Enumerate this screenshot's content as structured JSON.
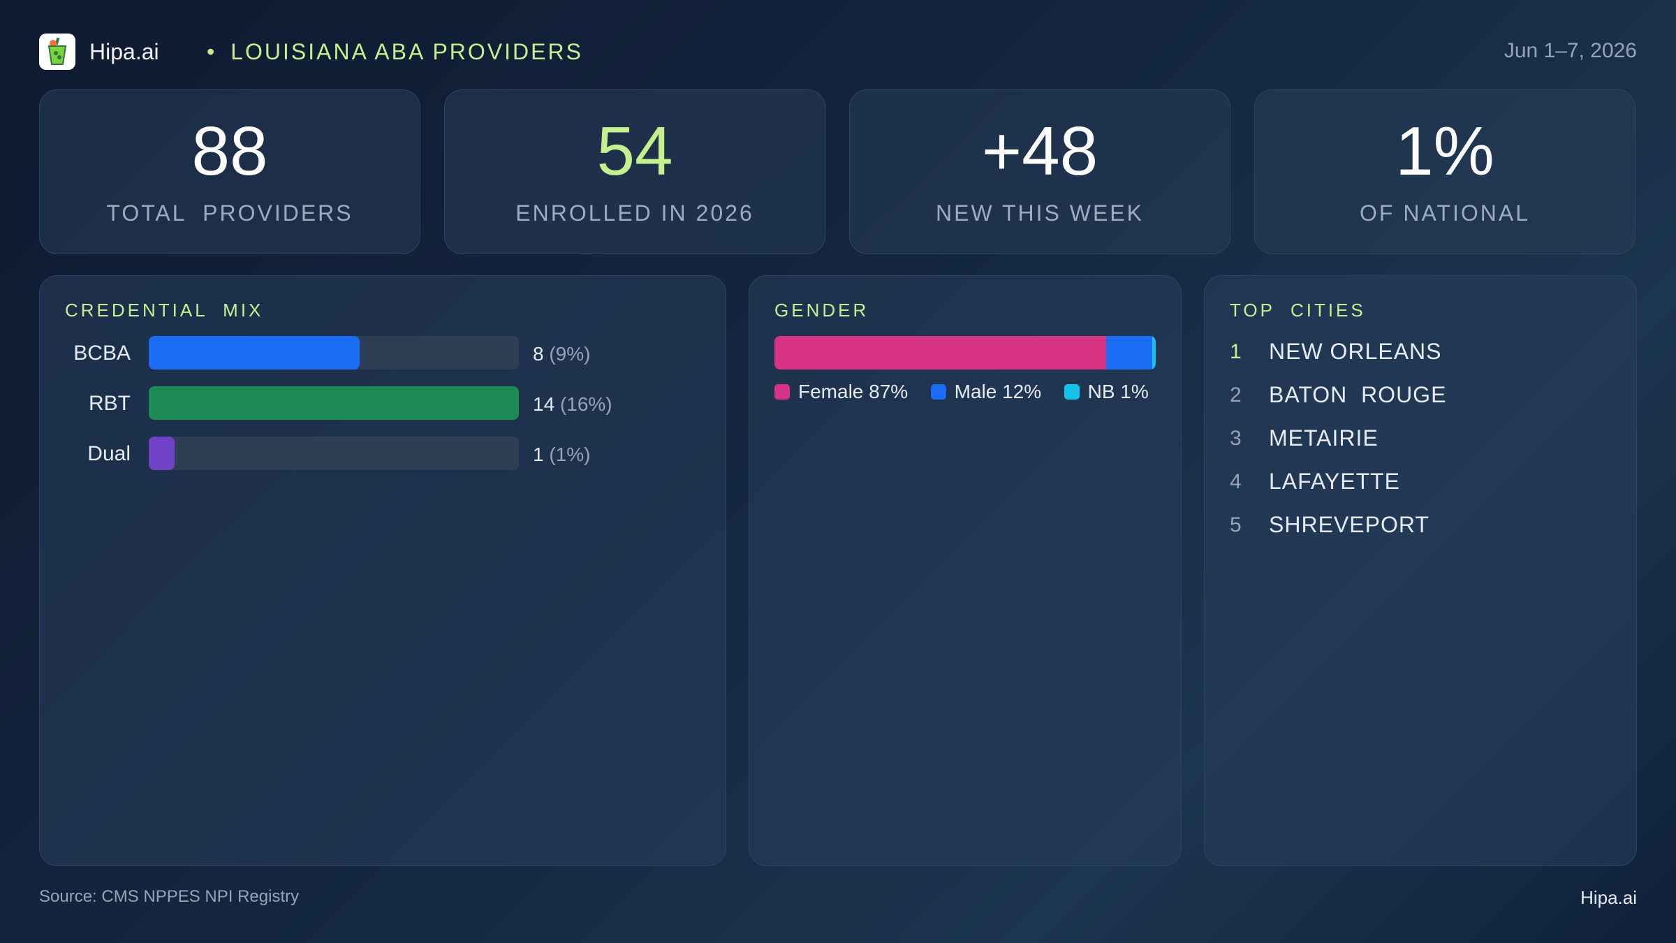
{
  "header": {
    "brand": "Hipa.ai",
    "separator": "•",
    "title": "LOUISIANA ABA PROVIDERS",
    "date_range": "Jun 1–7, 2026",
    "logo_icon": "drink-cup-icon"
  },
  "stats": [
    {
      "value": "88",
      "label": "TOTAL  PROVIDERS"
    },
    {
      "value": "54",
      "label": "ENROLLED IN 2026"
    },
    {
      "value": "+48",
      "label": "NEW THIS WEEK"
    },
    {
      "value": "1%",
      "label": "OF NATIONAL"
    }
  ],
  "credential_mix": {
    "title": "CREDENTIAL  MIX",
    "rows": [
      {
        "label": "BCBA",
        "count": "8",
        "pct": "(9%)",
        "fill": 0.57,
        "color": "#1a6cf5"
      },
      {
        "label": "RBT",
        "count": "14",
        "pct": "(16%)",
        "fill": 1.0,
        "color": "#1c8a55"
      },
      {
        "label": "Dual",
        "count": "1",
        "pct": "(1%)",
        "fill": 0.07,
        "color": "#6f42c8"
      }
    ]
  },
  "gender": {
    "title": "GENDER",
    "segments": [
      {
        "label": "Female 87%",
        "share": 87,
        "color": "#d63384"
      },
      {
        "label": "Male 12%",
        "share": 12,
        "color": "#1a6cf5"
      },
      {
        "label": "NB 1%",
        "share": 1,
        "color": "#16c2ea"
      }
    ]
  },
  "top_cities": {
    "title": "TOP  CITIES",
    "items": [
      {
        "rank": "1",
        "name": "NEW ORLEANS"
      },
      {
        "rank": "2",
        "name": "BATON  ROUGE"
      },
      {
        "rank": "3",
        "name": "METAIRIE"
      },
      {
        "rank": "4",
        "name": "LAFAYETTE"
      },
      {
        "rank": "5",
        "name": "SHREVEPORT"
      }
    ]
  },
  "footer": {
    "source": "Source: CMS NPPES NPI Registry",
    "brand": "Hipa.ai"
  },
  "colors": {
    "accent": "#c6f08f",
    "background": "#13243c"
  }
}
